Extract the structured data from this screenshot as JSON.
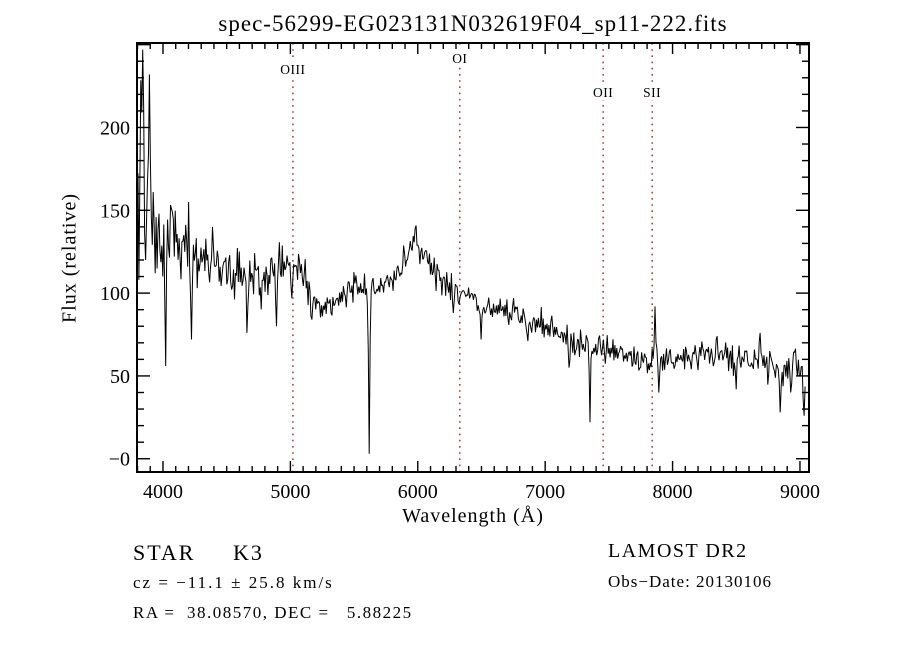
{
  "title": "spec-56299-EG023131N032619F04_sp11-222.fits",
  "chart_data": {
    "type": "line",
    "title": "spec-56299-EG023131N032619F04_sp11-222.fits",
    "xlabel": "Wavelength (Å)",
    "ylabel": "Flux (relative)",
    "xlim": [
      3796,
      9071
    ],
    "ylim": [
      -8,
      251
    ],
    "grid": false,
    "line_color": "#000000",
    "marker_color": "#8f2b2b",
    "x_major_ticks": [
      4000,
      5000,
      6000,
      7000,
      8000,
      9000
    ],
    "x_minor_step": 100,
    "y_ticks": [
      {
        "v": 0,
        "label": "−0"
      },
      {
        "v": 50,
        "label": "50"
      },
      {
        "v": 100,
        "label": "100"
      },
      {
        "v": 150,
        "label": "150"
      },
      {
        "v": 200,
        "label": "200"
      }
    ],
    "y_minor_step": 10,
    "line_markers": [
      {
        "label": "OIII",
        "wavelength": 5020,
        "label_y": 69
      },
      {
        "label": "OI",
        "wavelength": 6330,
        "label_y": 58
      },
      {
        "label": "OII",
        "wavelength": 7455,
        "label_y": 92
      },
      {
        "label": "SII",
        "wavelength": 7840,
        "label_y": 92
      }
    ],
    "series": [
      {
        "name": "spectrum",
        "samples": 700,
        "noise_seed": 20130106,
        "x_end": 9040,
        "envelope": [
          [
            3796,
            168
          ],
          [
            3825,
            190
          ],
          [
            3855,
            185
          ],
          [
            3885,
            165
          ],
          [
            3915,
            152
          ],
          [
            3950,
            145
          ],
          [
            4000,
            138
          ],
          [
            4060,
            140
          ],
          [
            4120,
            133
          ],
          [
            4200,
            128
          ],
          [
            4300,
            122
          ],
          [
            4400,
            118
          ],
          [
            4500,
            114
          ],
          [
            4600,
            110
          ],
          [
            4700,
            107
          ],
          [
            4800,
            108
          ],
          [
            4900,
            115
          ],
          [
            4980,
            120
          ],
          [
            5060,
            117
          ],
          [
            5150,
            102
          ],
          [
            5230,
            91
          ],
          [
            5320,
            93
          ],
          [
            5420,
            99
          ],
          [
            5520,
            104
          ],
          [
            5620,
            103
          ],
          [
            5700,
            104
          ],
          [
            5800,
            108
          ],
          [
            5880,
            118
          ],
          [
            5950,
            128
          ],
          [
            5985,
            136
          ],
          [
            6020,
            126
          ],
          [
            6100,
            116
          ],
          [
            6160,
            109
          ],
          [
            6260,
            104
          ],
          [
            6360,
            99
          ],
          [
            6460,
            96
          ],
          [
            6560,
            92
          ],
          [
            6660,
            90
          ],
          [
            6760,
            87
          ],
          [
            6860,
            84
          ],
          [
            6960,
            81
          ],
          [
            7060,
            78
          ],
          [
            7160,
            74
          ],
          [
            7260,
            70
          ],
          [
            7360,
            68
          ],
          [
            7460,
            66
          ],
          [
            7560,
            63
          ],
          [
            7660,
            61
          ],
          [
            7760,
            60
          ],
          [
            7860,
            59
          ],
          [
            7960,
            60
          ],
          [
            8060,
            61
          ],
          [
            8160,
            62
          ],
          [
            8260,
            64
          ],
          [
            8360,
            65
          ],
          [
            8460,
            61
          ],
          [
            8560,
            59
          ],
          [
            8660,
            61
          ],
          [
            8760,
            58
          ],
          [
            8840,
            50
          ],
          [
            8920,
            56
          ],
          [
            8990,
            60
          ],
          [
            9040,
            45
          ]
        ],
        "noise_amplitude": [
          [
            3796,
            50
          ],
          [
            3850,
            55
          ],
          [
            3900,
            40
          ],
          [
            3950,
            28
          ],
          [
            4000,
            24
          ],
          [
            4100,
            22
          ],
          [
            4200,
            20
          ],
          [
            4400,
            16
          ],
          [
            4600,
            14
          ],
          [
            4800,
            12
          ],
          [
            5000,
            10
          ],
          [
            5200,
            9
          ],
          [
            5500,
            8
          ],
          [
            5900,
            7
          ],
          [
            6300,
            7
          ],
          [
            6700,
            7
          ],
          [
            7100,
            7
          ],
          [
            7500,
            7
          ],
          [
            7900,
            7
          ],
          [
            8300,
            8
          ],
          [
            8700,
            9
          ],
          [
            9000,
            10
          ]
        ],
        "features": [
          [
            3812,
            108
          ],
          [
            3843,
            247
          ],
          [
            3860,
            120
          ],
          [
            3891,
            232
          ],
          [
            3936,
            112
          ],
          [
            4020,
            56
          ],
          [
            4226,
            72
          ],
          [
            4385,
            140
          ],
          [
            4660,
            76
          ],
          [
            4890,
            80
          ],
          [
            5015,
            97
          ],
          [
            5170,
            84
          ],
          [
            5620,
            3
          ],
          [
            5982,
            139
          ],
          [
            6276,
            88
          ],
          [
            6495,
            72
          ],
          [
            6868,
            71
          ],
          [
            7186,
            55
          ],
          [
            7352,
            22
          ],
          [
            7865,
            92
          ],
          [
            7895,
            40
          ],
          [
            8348,
            74
          ],
          [
            8498,
            42
          ],
          [
            8688,
            76
          ],
          [
            8848,
            28
          ],
          [
            8925,
            40
          ],
          [
            9035,
            26
          ]
        ]
      }
    ]
  },
  "annotations": {
    "class_line": "STAR     K3",
    "cz_line": "cz = −11.1 ± 25.8 km/s",
    "radec_line": "RA =  38.08570, DEC =   5.88225",
    "survey": "LAMOST DR2",
    "obsdate_line": "Obs−Date: 20130106"
  }
}
